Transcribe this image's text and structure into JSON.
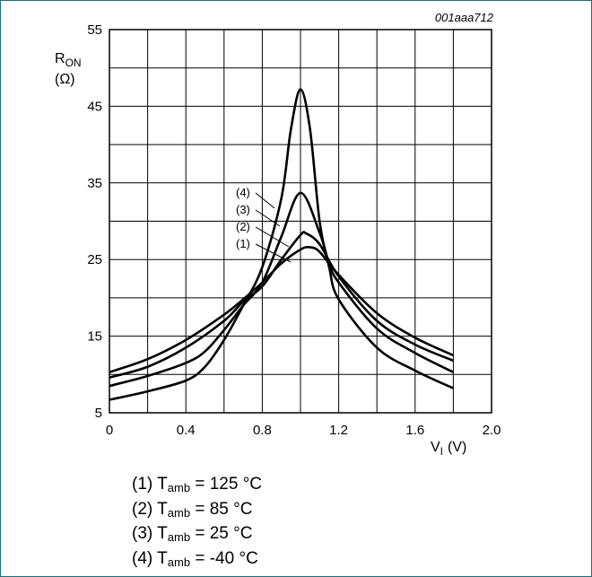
{
  "figure_id": "001aaa712",
  "chart_data": {
    "type": "line",
    "xlabel": "V",
    "xlabel_sub": "I",
    "xlabel_unit": "(V)",
    "ylabel": "R",
    "ylabel_sub": "ON",
    "ylabel_unit": "(Ω)",
    "xlim": [
      0,
      2.0
    ],
    "ylim": [
      5,
      55
    ],
    "x_ticks": [
      "0",
      "0.4",
      "0.8",
      "1.2",
      "1.6",
      "2.0"
    ],
    "y_ticks": [
      "5",
      "15",
      "25",
      "35",
      "45",
      "55"
    ],
    "grid": true,
    "x_grid_step": 0.2,
    "y_grid_step": 5,
    "series": [
      {
        "name": "(1)",
        "x": [
          0,
          0.2,
          0.4,
          0.6,
          0.7,
          0.8,
          0.9,
          1.0,
          1.05,
          1.1,
          1.2,
          1.4,
          1.6,
          1.8
        ],
        "y": [
          10.3,
          12.0,
          14.5,
          17.8,
          19.8,
          22.0,
          24.5,
          26.3,
          26.6,
          26.0,
          23.0,
          18.0,
          14.8,
          12.5
        ]
      },
      {
        "name": "(2)",
        "x": [
          0,
          0.2,
          0.4,
          0.6,
          0.7,
          0.8,
          0.9,
          1.0,
          1.03,
          1.1,
          1.2,
          1.4,
          1.6,
          1.8
        ],
        "y": [
          9.6,
          11.0,
          13.5,
          17.0,
          19.5,
          21.5,
          25.0,
          28.2,
          28.4,
          27.0,
          22.8,
          17.0,
          13.9,
          11.8
        ]
      },
      {
        "name": "(3)",
        "x": [
          0,
          0.2,
          0.4,
          0.5,
          0.6,
          0.7,
          0.8,
          0.9,
          1.0,
          1.1,
          1.15,
          1.2,
          1.4,
          1.6,
          1.8
        ],
        "y": [
          8.5,
          9.8,
          11.5,
          13.0,
          15.8,
          19.0,
          22.0,
          28.0,
          33.7,
          28.5,
          24.5,
          22.0,
          16.0,
          12.8,
          10.3
        ]
      },
      {
        "name": "(4)",
        "x": [
          0,
          0.2,
          0.4,
          0.5,
          0.6,
          0.7,
          0.8,
          0.9,
          0.95,
          1.0,
          1.05,
          1.1,
          1.15,
          1.2,
          1.4,
          1.6,
          1.8
        ],
        "y": [
          6.7,
          7.8,
          9.2,
          11.0,
          14.5,
          19.0,
          24.0,
          33.0,
          42.0,
          47.2,
          42.0,
          30.0,
          24.0,
          19.8,
          13.5,
          10.5,
          8.2
        ]
      }
    ]
  },
  "legend": [
    {
      "num": "(1)",
      "symbol": "T",
      "sub": "amb",
      "value": "= 125 °C"
    },
    {
      "num": "(2)",
      "symbol": "T",
      "sub": "amb",
      "value": "= 85 °C"
    },
    {
      "num": "(3)",
      "symbol": "T",
      "sub": "amb",
      "value": "= 25 °C"
    },
    {
      "num": "(4)",
      "symbol": "T",
      "sub": "amb",
      "value": "= -40 °C"
    }
  ]
}
